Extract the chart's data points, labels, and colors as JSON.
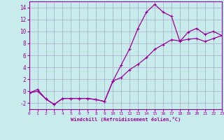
{
  "xlabel": "Windchill (Refroidissement éolien,°C)",
  "bg_color": "#c8ecec",
  "grid_color": "#aaaacc",
  "line_color": "#990099",
  "curve1_x": [
    0,
    1,
    2,
    3,
    4,
    5,
    6,
    7,
    8,
    9,
    10,
    11,
    12,
    13,
    14,
    15,
    16,
    17,
    18,
    19,
    20,
    21,
    22,
    23
  ],
  "curve1_y": [
    -0.3,
    0.0,
    -1.3,
    -2.2,
    -1.2,
    -1.2,
    -1.2,
    -1.2,
    -1.4,
    -1.7,
    1.7,
    4.4,
    7.1,
    10.5,
    13.2,
    14.5,
    13.2,
    12.5,
    8.3,
    9.9,
    10.5,
    9.5,
    10.0,
    9.3
  ],
  "curve2_x": [
    0,
    1,
    2,
    3,
    4,
    5,
    6,
    7,
    8,
    9,
    10,
    11,
    12,
    13,
    14,
    15,
    16,
    17,
    18,
    19,
    20,
    21,
    22,
    23
  ],
  "curve2_y": [
    -0.3,
    0.3,
    -1.3,
    -2.2,
    -1.2,
    -1.2,
    -1.2,
    -1.2,
    -1.4,
    -1.7,
    1.7,
    2.3,
    3.6,
    4.5,
    5.6,
    7.0,
    7.8,
    8.6,
    8.4,
    8.7,
    8.8,
    8.3,
    8.8,
    9.3
  ],
  "ylim": [
    -3,
    15
  ],
  "xlim": [
    0,
    23
  ],
  "yticks": [
    -2,
    0,
    2,
    4,
    6,
    8,
    10,
    12,
    14
  ],
  "xticks": [
    0,
    1,
    2,
    3,
    4,
    5,
    6,
    7,
    8,
    9,
    10,
    11,
    12,
    13,
    14,
    15,
    16,
    17,
    18,
    19,
    20,
    21,
    22,
    23
  ],
  "font_family": "monospace",
  "marker": "+"
}
